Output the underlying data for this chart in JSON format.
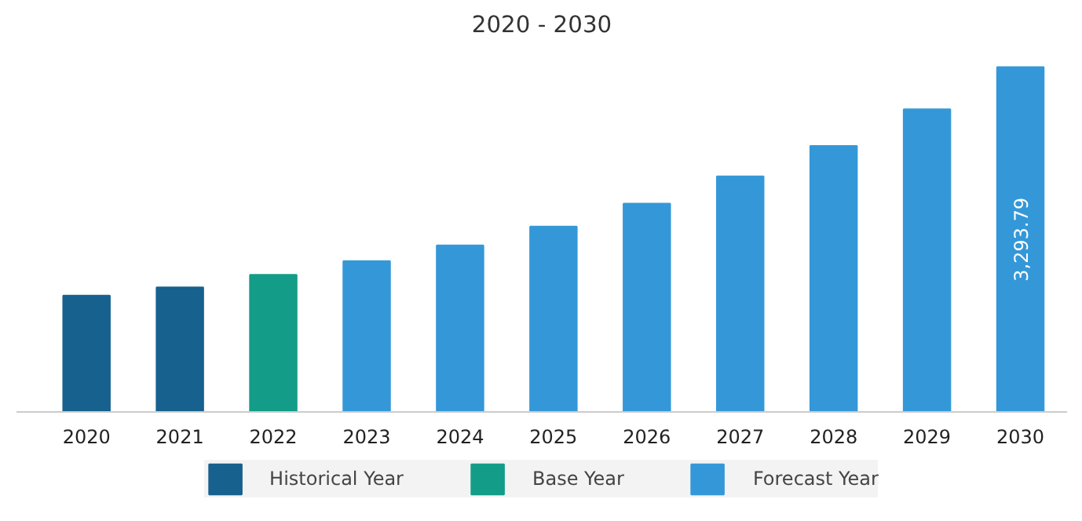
{
  "chart_data": {
    "type": "bar",
    "title": "2020 - 2030",
    "categories": [
      "2020",
      "2021",
      "2022",
      "2023",
      "2024",
      "2025",
      "2026",
      "2027",
      "2028",
      "2029",
      "2030"
    ],
    "series": [
      {
        "name": "Historical Year",
        "color": "#17618f",
        "values": [
          1110,
          1190,
          null,
          null,
          null,
          null,
          null,
          null,
          null,
          null,
          null
        ]
      },
      {
        "name": "Base Year",
        "color": "#139d88",
        "values": [
          null,
          null,
          1310,
          null,
          null,
          null,
          null,
          null,
          null,
          null,
          null
        ]
      },
      {
        "name": "Forecast Year",
        "color": "#3498d8",
        "values": [
          null,
          null,
          null,
          1440,
          1590,
          1770,
          1990,
          2250,
          2540,
          2890,
          3293.79
        ],
        "value_labels": [
          null,
          null,
          null,
          null,
          null,
          null,
          null,
          null,
          null,
          null,
          "3,293.79"
        ]
      }
    ],
    "legend": "bottom",
    "grid": false
  }
}
